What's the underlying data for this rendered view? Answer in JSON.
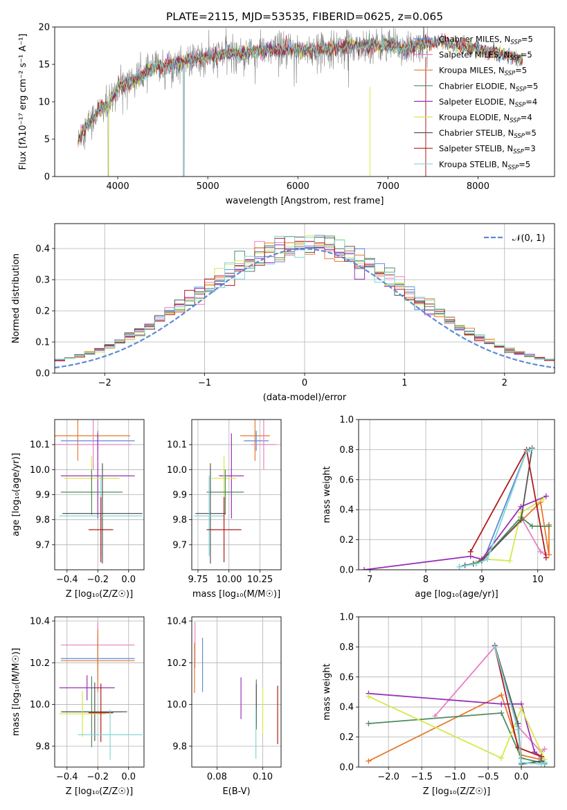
{
  "colors": {
    "miles_chabrier": "#5b8bd6",
    "miles_salpeter": "#e97fc0",
    "miles_kroupa": "#e8792a",
    "elodie_chabrier": "#4c8a5e",
    "elodie_salpeter": "#9b2fb8",
    "elodie_kroupa": "#d6e84a",
    "stelib_chabrier": "#555555",
    "stelib_salpeter": "#b01a1a",
    "stelib_kroupa": "#7fd6d6",
    "gaussian": "#5b8bd6",
    "grid": "#b0b0b0"
  },
  "chart_data": [
    {
      "id": "spectrum",
      "type": "line",
      "title": "PLATE=2115, MJD=53535, FIBERID=0625, z=0.065",
      "xlabel": "wavelength [Angstrom, rest frame]",
      "ylabel": "Flux [fλ10⁻¹⁷ erg cm⁻² s⁻¹ A⁻¹]",
      "xlim": [
        3300,
        8850
      ],
      "ylim": [
        0,
        20
      ],
      "xticks": [
        "4000",
        "5000",
        "6000",
        "7000",
        "8000"
      ],
      "yticks": [
        "0",
        "5",
        "10",
        "15",
        "20"
      ],
      "grid": false,
      "legend_position": "right",
      "legend": [
        {
          "pre": "Chabrier MILES, N",
          "sub": "SSP",
          "post": "=5",
          "color": "miles_chabrier"
        },
        {
          "pre": "Salpeter MILES, N",
          "sub": "SSP",
          "post": "=5",
          "color": "miles_salpeter"
        },
        {
          "pre": "Kroupa MILES, N",
          "sub": "SSP",
          "post": "=5",
          "color": "miles_kroupa"
        },
        {
          "pre": "Chabrier ELODIE, N",
          "sub": "SSP",
          "post": "=5",
          "color": "elodie_chabrier"
        },
        {
          "pre": "Salpeter ELODIE, N",
          "sub": "SSP",
          "post": "=4",
          "color": "elodie_salpeter"
        },
        {
          "pre": "Kroupa ELODIE, N",
          "sub": "SSP",
          "post": "=4",
          "color": "elodie_kroupa"
        },
        {
          "pre": "Chabrier STELIB, N",
          "sub": "SSP",
          "post": "=5",
          "color": "stelib_chabrier"
        },
        {
          "pre": "Salpeter STELIB, N",
          "sub": "SSP",
          "post": "=3",
          "color": "stelib_salpeter"
        },
        {
          "pre": "Kroupa STELIB, N",
          "sub": "SSP",
          "post": "=5",
          "color": "stelib_kroupa"
        }
      ],
      "continuum": [
        [
          3560,
          4.5
        ],
        [
          3600,
          6.0
        ],
        [
          3700,
          7.5
        ],
        [
          3800,
          9.0
        ],
        [
          3900,
          9.5
        ],
        [
          4000,
          12.0
        ],
        [
          4200,
          13.0
        ],
        [
          4400,
          14.5
        ],
        [
          4600,
          15.0
        ],
        [
          4800,
          15.5
        ],
        [
          5000,
          16.0
        ],
        [
          5200,
          16.5
        ],
        [
          5400,
          16.5
        ],
        [
          5600,
          16.8
        ],
        [
          5800,
          17.0
        ],
        [
          6000,
          17.0
        ],
        [
          6200,
          17.0
        ],
        [
          6400,
          17.2
        ],
        [
          6600,
          17.5
        ],
        [
          6800,
          17.5
        ],
        [
          7000,
          17.6
        ],
        [
          7200,
          17.0
        ],
        [
          7400,
          17.8
        ],
        [
          7600,
          18.0
        ],
        [
          7800,
          17.5
        ],
        [
          8000,
          17.0
        ],
        [
          8200,
          16.5
        ],
        [
          8400,
          16.0
        ],
        [
          8500,
          15.5
        ]
      ],
      "model_start": 3560,
      "model_end": 8500,
      "data_end": 7440
    },
    {
      "id": "residual-histogram",
      "type": "step",
      "xlabel": "(data-model)/error",
      "ylabel": "Normed distribution",
      "xlim": [
        -2.5,
        2.5
      ],
      "ylim": [
        0,
        0.48
      ],
      "xticks": [
        "−2",
        "−1",
        "0",
        "1",
        "2"
      ],
      "yticks": [
        "0.0",
        "0.1",
        "0.2",
        "0.3",
        "0.4"
      ],
      "grid": true,
      "legend_position": "top-right",
      "legend_label": "𝒩(0, 1)",
      "bin_width": 0.1
    },
    {
      "id": "age-vs-metallicity",
      "type": "errorbar",
      "xlabel": "Z [log₁₀(Z/Z☉)]",
      "ylabel": "age  [log₁₀(age/yr)]",
      "xlim": [
        -0.48,
        0.1
      ],
      "ylim": [
        9.6,
        10.2
      ],
      "xticks": [
        "−0.4",
        "−0.2",
        "0.0"
      ],
      "yticks": [
        "9.7",
        "9.8",
        "9.9",
        "10.0",
        "10.1"
      ],
      "grid": true,
      "points": [
        {
          "c": "miles_kroupa",
          "x": -0.33,
          "xe": 0.34,
          "y": 10.135,
          "ye": 0.1
        },
        {
          "c": "miles_chabrier",
          "x": -0.2,
          "xe": 0.24,
          "y": 10.115,
          "ye": 0.04
        },
        {
          "c": "miles_salpeter",
          "x": -0.23,
          "xe": 0.25,
          "y": 10.1,
          "ye": 0.1
        },
        {
          "c": "elodie_salpeter",
          "x": -0.2,
          "xe": 0.24,
          "y": 9.975,
          "ye": 0.17
        },
        {
          "c": "elodie_kroupa",
          "x": -0.24,
          "xe": 0.18,
          "y": 9.965,
          "ye": 0.09
        },
        {
          "c": "elodie_chabrier",
          "x": -0.24,
          "xe": 0.2,
          "y": 9.91,
          "ye": 0.09
        },
        {
          "c": "stelib_chabrier",
          "x": -0.17,
          "xe": 0.26,
          "y": 9.825,
          "ye": 0.2
        },
        {
          "c": "stelib_kroupa",
          "x": -0.18,
          "xe": 0.27,
          "y": 9.815,
          "ye": 0.16
        },
        {
          "c": "stelib_salpeter",
          "x": -0.18,
          "xe": 0.08,
          "y": 9.76,
          "ye": 0.13
        }
      ]
    },
    {
      "id": "age-vs-mass",
      "type": "errorbar",
      "xlabel": "mass [log₁₀(M/M☉)]",
      "ylabel": "",
      "xlim": [
        9.7,
        10.42
      ],
      "ylim": [
        9.6,
        10.2
      ],
      "xticks": [
        "9.75",
        "10.00",
        "10.25"
      ],
      "yticks": [
        "9.7",
        "9.8",
        "9.9",
        "10.0",
        "10.1"
      ],
      "grid": true,
      "points": [
        {
          "c": "miles_kroupa",
          "x": 10.21,
          "xe": 0.12,
          "y": 10.135,
          "ye": 0.1
        },
        {
          "c": "miles_chabrier",
          "x": 10.22,
          "xe": 0.1,
          "y": 10.115,
          "ye": 0.04
        },
        {
          "c": "miles_salpeter",
          "x": 10.28,
          "xe": 0.1,
          "y": 10.1,
          "ye": 0.1
        },
        {
          "c": "elodie_salpeter",
          "x": 10.02,
          "xe": 0.1,
          "y": 9.975,
          "ye": 0.17
        },
        {
          "c": "elodie_kroupa",
          "x": 9.96,
          "xe": 0.1,
          "y": 9.965,
          "ye": 0.09
        },
        {
          "c": "elodie_chabrier",
          "x": 9.97,
          "xe": 0.15,
          "y": 9.91,
          "ye": 0.09
        },
        {
          "c": "stelib_chabrier",
          "x": 9.85,
          "xe": 0.12,
          "y": 9.825,
          "ye": 0.2
        },
        {
          "c": "stelib_kroupa",
          "x": 9.84,
          "xe": 0.12,
          "y": 9.815,
          "ye": 0.16
        },
        {
          "c": "stelib_salpeter",
          "x": 9.96,
          "xe": 0.14,
          "y": 9.76,
          "ye": 0.13
        }
      ]
    },
    {
      "id": "mass-weight-vs-age",
      "type": "line",
      "xlabel": "age  [log₁₀(age/yr)]",
      "ylabel": "mass weight",
      "xlim": [
        6.8,
        10.3
      ],
      "ylim": [
        0,
        1
      ],
      "xticks": [
        "7",
        "8",
        "9",
        "10"
      ],
      "yticks": [
        "0.0",
        "0.2",
        "0.4",
        "0.6",
        "0.8",
        "1.0"
      ],
      "grid": true,
      "series": [
        {
          "c": "miles_chabrier",
          "x": [
            8.6,
            8.85,
            9.05,
            9.8,
            9.85
          ],
          "y": [
            0.02,
            0.04,
            0.08,
            0.79,
            0.8
          ]
        },
        {
          "c": "miles_salpeter",
          "x": [
            8.85,
            9.05,
            9.7,
            10.05,
            10.15
          ],
          "y": [
            0.04,
            0.08,
            0.35,
            0.12,
            0.1
          ]
        },
        {
          "c": "miles_kroupa",
          "x": [
            8.9,
            9.0,
            10.05,
            10.2,
            10.2
          ],
          "y": [
            0.04,
            0.07,
            0.45,
            0.1,
            0.3
          ]
        },
        {
          "c": "elodie_chabrier",
          "x": [
            8.85,
            9.0,
            9.7,
            9.9,
            10.2
          ],
          "y": [
            0.04,
            0.06,
            0.35,
            0.29,
            0.29
          ]
        },
        {
          "c": "elodie_salpeter",
          "x": [
            6.9,
            8.8,
            9.0,
            9.7,
            10.15
          ],
          "y": [
            0.0,
            0.09,
            0.07,
            0.42,
            0.49
          ]
        },
        {
          "c": "elodie_kroupa",
          "x": [
            8.9,
            9.1,
            9.5,
            9.7,
            10.1
          ],
          "y": [
            0.05,
            0.07,
            0.06,
            0.38,
            0.47
          ]
        },
        {
          "c": "stelib_chabrier",
          "x": [
            8.7,
            8.85,
            9.0,
            9.7,
            9.9
          ],
          "y": [
            0.03,
            0.04,
            0.06,
            0.33,
            0.81
          ]
        },
        {
          "c": "stelib_salpeter",
          "x": [
            8.8,
            9.8,
            10.15
          ],
          "y": [
            0.12,
            0.8,
            0.08
          ]
        },
        {
          "c": "stelib_kroupa",
          "x": [
            8.6,
            8.9,
            9.1,
            9.8,
            9.9
          ],
          "y": [
            0.02,
            0.04,
            0.07,
            0.79,
            0.8
          ]
        }
      ]
    },
    {
      "id": "mass-vs-metallicity",
      "type": "errorbar",
      "xlabel": "Z [log₁₀(Z/Z☉)]",
      "ylabel": "mass [log₁₀(M/M☉)]",
      "xlim": [
        -0.48,
        0.1
      ],
      "ylim": [
        9.7,
        10.42
      ],
      "xticks": [
        "−0.4",
        "−0.2",
        "0.0"
      ],
      "yticks": [
        "9.8",
        "10.0",
        "10.2",
        "10.4"
      ],
      "grid": true,
      "points": [
        {
          "c": "miles_salpeter",
          "x": -0.2,
          "xe": 0.24,
          "y": 10.285,
          "ye": 0.11
        },
        {
          "c": "miles_chabrier",
          "x": -0.2,
          "xe": 0.24,
          "y": 10.22,
          "ye": 0.1
        },
        {
          "c": "miles_kroupa",
          "x": -0.2,
          "xe": 0.24,
          "y": 10.21,
          "ye": 0.15
        },
        {
          "c": "elodie_salpeter",
          "x": -0.27,
          "xe": 0.18,
          "y": 10.08,
          "ye": 0.06
        },
        {
          "c": "elodie_chabrier",
          "x": -0.24,
          "xe": 0.2,
          "y": 9.965,
          "ye": 0.17
        },
        {
          "c": "stelib_chabrier",
          "x": -0.22,
          "xe": 0.21,
          "y": 9.965,
          "ye": 0.14
        },
        {
          "c": "elodie_kroupa",
          "x": -0.3,
          "xe": 0.15,
          "y": 9.955,
          "ye": 0.11
        },
        {
          "c": "stelib_salpeter",
          "x": -0.18,
          "xe": 0.08,
          "y": 9.96,
          "ye": 0.14
        },
        {
          "c": "stelib_kroupa",
          "x": -0.12,
          "xe": 0.21,
          "y": 9.855,
          "ye": 0.12
        }
      ]
    },
    {
      "id": "mass-vs-extinction",
      "type": "errorbar",
      "xlabel": "E(B-V)",
      "ylabel": "",
      "xlim": [
        0.069,
        0.108
      ],
      "ylim": [
        9.7,
        10.42
      ],
      "xticks": [
        "0.08",
        "0.10"
      ],
      "yticks": [
        "9.8",
        "10.0",
        "10.2",
        "10.4"
      ],
      "grid": true,
      "points": [
        {
          "c": "miles_salpeter",
          "x": 0.0704,
          "xe": 0,
          "y": 10.285,
          "ye": 0.11
        },
        {
          "c": "miles_kroupa",
          "x": 0.0702,
          "xe": 0,
          "y": 10.175,
          "ye": 0.12
        },
        {
          "c": "miles_chabrier",
          "x": 0.0737,
          "xe": 0,
          "y": 10.19,
          "ye": 0.13
        },
        {
          "c": "elodie_salpeter",
          "x": 0.0905,
          "xe": 0,
          "y": 10.03,
          "ye": 0.1
        },
        {
          "c": "elodie_chabrier",
          "x": 0.0972,
          "xe": 0,
          "y": 10.01,
          "ye": 0.11
        },
        {
          "c": "stelib_chabrier",
          "x": 0.0972,
          "xe": 0,
          "y": 9.99,
          "ye": 0.11
        },
        {
          "c": "elodie_kroupa",
          "x": 0.1,
          "xe": 0,
          "y": 9.97,
          "ye": 0.11
        },
        {
          "c": "stelib_kroupa",
          "x": 0.097,
          "xe": 0,
          "y": 9.86,
          "ye": 0.12
        },
        {
          "c": "stelib_salpeter",
          "x": 0.1065,
          "xe": 0,
          "y": 9.95,
          "ye": 0.14
        }
      ]
    },
    {
      "id": "mass-weight-vs-metallicity",
      "type": "line",
      "xlabel": "Z [log₁₀(Z/Z☉)]",
      "ylabel": "mass weight",
      "xlim": [
        -2.45,
        0.5
      ],
      "ylim": [
        0,
        1
      ],
      "xticks": [
        "−2.0",
        "−1.5",
        "−1.0",
        "−0.5",
        "0.0"
      ],
      "yticks": [
        "0.0",
        "0.2",
        "0.4",
        "0.6",
        "0.8",
        "1.0"
      ],
      "grid": true,
      "series": [
        {
          "c": "miles_chabrier",
          "x": [
            -0.4,
            -0.05,
            0.0,
            0.3,
            0.3
          ],
          "y": [
            0.8,
            0.25,
            0.02,
            0.04,
            0.06
          ]
        },
        {
          "c": "miles_salpeter",
          "x": [
            -1.3,
            -0.4,
            -0.05,
            0.3,
            0.35
          ],
          "y": [
            0.34,
            0.8,
            0.27,
            0.1,
            0.12
          ]
        },
        {
          "c": "miles_kroupa",
          "x": [
            -2.3,
            -0.3,
            0.0,
            0.3,
            0.35
          ],
          "y": [
            0.04,
            0.48,
            0.08,
            0.05,
            0.03
          ]
        },
        {
          "c": "elodie_chabrier",
          "x": [
            -2.3,
            -0.3,
            0.0,
            0.3,
            0.35
          ],
          "y": [
            0.29,
            0.36,
            0.06,
            0.03,
            0.02
          ]
        },
        {
          "c": "elodie_salpeter",
          "x": [
            -2.3,
            -0.3,
            0.0,
            0.2,
            0.3
          ],
          "y": [
            0.49,
            0.42,
            0.42,
            0.1,
            0.07
          ]
        },
        {
          "c": "elodie_kroupa",
          "x": [
            -2.3,
            -0.3,
            0.0,
            0.3,
            0.35
          ],
          "y": [
            0.47,
            0.06,
            0.39,
            0.1,
            0.05
          ]
        },
        {
          "c": "stelib_chabrier",
          "x": [
            -0.4,
            -0.05,
            0.0,
            0.3,
            0.35
          ],
          "y": [
            0.81,
            0.29,
            0.02,
            0.04,
            0.03
          ]
        },
        {
          "c": "stelib_salpeter",
          "x": [
            -0.4,
            -0.05,
            0.3
          ],
          "y": [
            0.8,
            0.13,
            0.07
          ]
        },
        {
          "c": "stelib_kroupa",
          "x": [
            -0.4,
            -0.05,
            0.0,
            0.3,
            0.35
          ],
          "y": [
            0.8,
            0.25,
            0.03,
            0.02,
            0.03
          ]
        }
      ]
    }
  ]
}
